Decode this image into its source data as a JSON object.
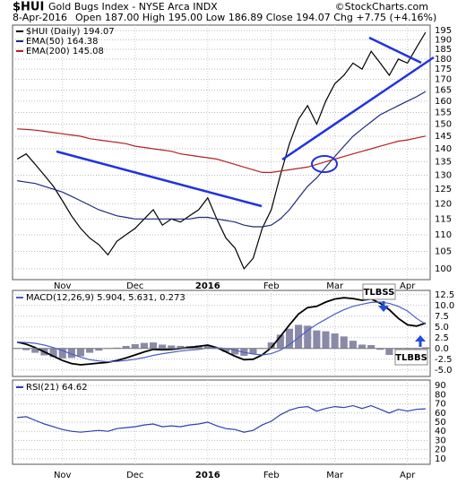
{
  "chart_data": [
    {
      "type": "line",
      "symbol": "$HUI",
      "title": "Gold Bugs Index - NYSE Arca INDX",
      "date": "8-Apr-2016",
      "quote": "Open 187.00 High 195.00 Low 186.89 Close 194.07 Chg +7.75 (+4.16%)",
      "credit": "©StockCharts.com",
      "categories": [
        null,
        null,
        null,
        null,
        null,
        "Nov",
        null,
        null,
        null,
        null,
        null,
        null,
        null,
        "Dec",
        null,
        null,
        null,
        null,
        null,
        null,
        null,
        "2016",
        null,
        null,
        null,
        null,
        null,
        null,
        "Feb",
        null,
        null,
        null,
        null,
        null,
        null,
        "Mar",
        null,
        null,
        null,
        null,
        null,
        null,
        null,
        "Apr",
        null,
        null
      ],
      "log": true,
      "grid": true,
      "ylim": [
        97,
        198
      ],
      "yticks": [
        100,
        105,
        110,
        115,
        120,
        125,
        130,
        135,
        140,
        145,
        150,
        155,
        160,
        165,
        170,
        175,
        180,
        185,
        190,
        195
      ],
      "series": [
        {
          "name": "$HUI (Daily) 194.07",
          "color": "#000000",
          "values": [
            136,
            138,
            134,
            130,
            126,
            121,
            116,
            112,
            109,
            107,
            104,
            108,
            110,
            112,
            115,
            118,
            113,
            115,
            114,
            116,
            118,
            122,
            115,
            109,
            106,
            100,
            103,
            112,
            118,
            130,
            142,
            152,
            158,
            150,
            160,
            168,
            172,
            178,
            175,
            184,
            178,
            172,
            180,
            178,
            186,
            194.07
          ]
        },
        {
          "name": "EMA(50) 164.38",
          "color": "#1f2a7a",
          "values": [
            128,
            127.5,
            127,
            126,
            125,
            124,
            122.5,
            121,
            119.5,
            118,
            117,
            116,
            115.5,
            115,
            115,
            115,
            115,
            115,
            115,
            115,
            115.5,
            115.5,
            115,
            114.5,
            114,
            113,
            112.5,
            112.5,
            113,
            115,
            118,
            122,
            126,
            129,
            133,
            137,
            141,
            145,
            148,
            151,
            154,
            156,
            158,
            160,
            162,
            164.38
          ]
        },
        {
          "name": "EMA(200) 145.08",
          "color": "#b22222",
          "values": [
            148,
            147.8,
            147.5,
            147,
            146.5,
            146,
            145.5,
            145,
            144,
            143.5,
            143,
            142.5,
            142,
            141,
            140.5,
            140,
            139.5,
            139,
            138,
            137.5,
            137,
            136.5,
            136,
            135,
            134,
            133,
            132,
            131,
            131,
            131.5,
            132,
            132.5,
            133,
            134,
            135,
            136,
            137,
            138,
            139,
            140,
            141,
            142,
            143,
            143.5,
            144.3,
            145.08
          ]
        }
      ]
    },
    {
      "type": "macd",
      "title": "MACD(12,26,9) 5.904, 5.631, 0.273",
      "grid": true,
      "ylim": [
        -6.5,
        13.5
      ],
      "yticks": [
        {
          "value": 12.5,
          "label": "12.5"
        },
        {
          "value": 10,
          "label": "10.0"
        },
        {
          "value": 7.5,
          "label": "7.5"
        },
        {
          "value": 5,
          "label": "5.0"
        },
        {
          "value": 2.5,
          "label": "2.5"
        },
        {
          "value": 0,
          "label": "0.0"
        },
        {
          "value": -2.5,
          "label": "-2.5"
        },
        {
          "value": -5,
          "label": "-5.0"
        }
      ],
      "annotations": [
        "TLBSS",
        "TLBBS"
      ],
      "series": [
        {
          "style": "histogram",
          "color": "#8a8aa8",
          "values": [
            0,
            -0.4,
            -1.0,
            -1.6,
            -2.0,
            -2.3,
            -2.2,
            -1.8,
            -1.0,
            -0.5,
            -0.1,
            0.2,
            0.6,
            1.0,
            1.3,
            1.4,
            0.9,
            0.7,
            0.6,
            0.6,
            0.7,
            0.7,
            0,
            -0.8,
            -1.4,
            -1.7,
            -1.2,
            0,
            1.4,
            3.2,
            4.6,
            5.5,
            5.3,
            4.2,
            4.0,
            3.5,
            2.8,
            1.8,
            0.9,
            0.8,
            -0.3,
            -1.5,
            -2.8,
            -3.2,
            -1.8,
            0.273
          ]
        },
        {
          "style": "line",
          "color": "#000000",
          "values": [
            1.5,
            1.0,
            0.2,
            -0.8,
            -1.8,
            -2.8,
            -3.5,
            -3.8,
            -3.6,
            -3.4,
            -3.2,
            -2.8,
            -2.2,
            -1.5,
            -0.8,
            -0.2,
            -0.3,
            -0.2,
            0,
            0.2,
            0.5,
            0.8,
            0.2,
            -0.8,
            -1.8,
            -2.6,
            -2.5,
            -1.5,
            0.2,
            2.8,
            5.5,
            8,
            9.5,
            9.8,
            10.8,
            11.5,
            11.8,
            11.6,
            11.2,
            11.5,
            10.5,
            9,
            7,
            5.5,
            5.2,
            5.904
          ]
        },
        {
          "style": "line",
          "color": "#4a5ec4",
          "values": [
            1.5,
            1.4,
            1.2,
            0.8,
            0.2,
            -0.5,
            -1.3,
            -2,
            -2.6,
            -2.9,
            -3.1,
            -3.0,
            -2.8,
            -2.5,
            -2.1,
            -1.6,
            -1.2,
            -0.9,
            -0.6,
            -0.4,
            -0.2,
            0.1,
            0.2,
            0.0,
            -0.4,
            -0.9,
            -1.3,
            -1.5,
            -1.2,
            -0.4,
            0.9,
            2.5,
            4.2,
            5.6,
            6.8,
            8,
            9.0,
            9.8,
            10.3,
            10.7,
            10.8,
            10.5,
            9.8,
            8.7,
            7,
            5.631
          ]
        }
      ]
    },
    {
      "type": "line",
      "title": "RSI(21) 64.62",
      "grid": true,
      "ylim": [
        4,
        96
      ],
      "yticks": [
        90,
        80,
        70,
        60,
        50,
        40,
        30,
        20,
        10
      ],
      "series": [
        {
          "color": "#2b3fb0",
          "values": [
            55,
            56,
            52,
            48,
            45,
            42,
            40,
            39,
            40,
            41,
            40,
            43,
            44,
            45,
            47,
            48,
            45,
            46,
            45,
            47,
            48,
            50,
            46,
            43,
            42,
            39,
            41,
            47,
            51,
            58,
            63,
            66,
            67,
            62,
            65,
            67,
            66,
            68,
            65,
            68,
            64,
            60,
            64,
            62,
            64,
            64.62
          ]
        }
      ]
    }
  ]
}
